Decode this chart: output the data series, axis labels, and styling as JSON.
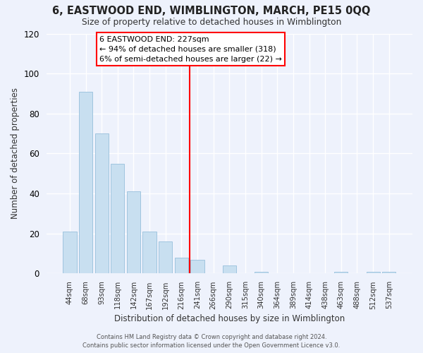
{
  "title": "6, EASTWOOD END, WIMBLINGTON, MARCH, PE15 0QQ",
  "subtitle": "Size of property relative to detached houses in Wimblington",
  "xlabel": "Distribution of detached houses by size in Wimblington",
  "ylabel": "Number of detached properties",
  "bar_labels": [
    "44sqm",
    "68sqm",
    "93sqm",
    "118sqm",
    "142sqm",
    "167sqm",
    "192sqm",
    "216sqm",
    "241sqm",
    "266sqm",
    "290sqm",
    "315sqm",
    "340sqm",
    "364sqm",
    "389sqm",
    "414sqm",
    "438sqm",
    "463sqm",
    "488sqm",
    "512sqm",
    "537sqm"
  ],
  "bar_values": [
    21,
    91,
    70,
    55,
    41,
    21,
    16,
    8,
    7,
    0,
    4,
    0,
    1,
    0,
    0,
    0,
    0,
    1,
    0,
    1,
    1
  ],
  "bar_color": "#c8dff0",
  "bar_edge_color": "#a0c4df",
  "vline_x": 7.5,
  "vline_color": "red",
  "ylim": [
    0,
    120
  ],
  "yticks": [
    0,
    20,
    40,
    60,
    80,
    100,
    120
  ],
  "annotation_title": "6 EASTWOOD END: 227sqm",
  "annotation_line1": "← 94% of detached houses are smaller (318)",
  "annotation_line2": "6% of semi-detached houses are larger (22) →",
  "annotation_box_color": "#ffffff",
  "annotation_box_edge": "red",
  "footer_line1": "Contains HM Land Registry data © Crown copyright and database right 2024.",
  "footer_line2": "Contains public sector information licensed under the Open Government Licence v3.0.",
  "background_color": "#eef2fc"
}
